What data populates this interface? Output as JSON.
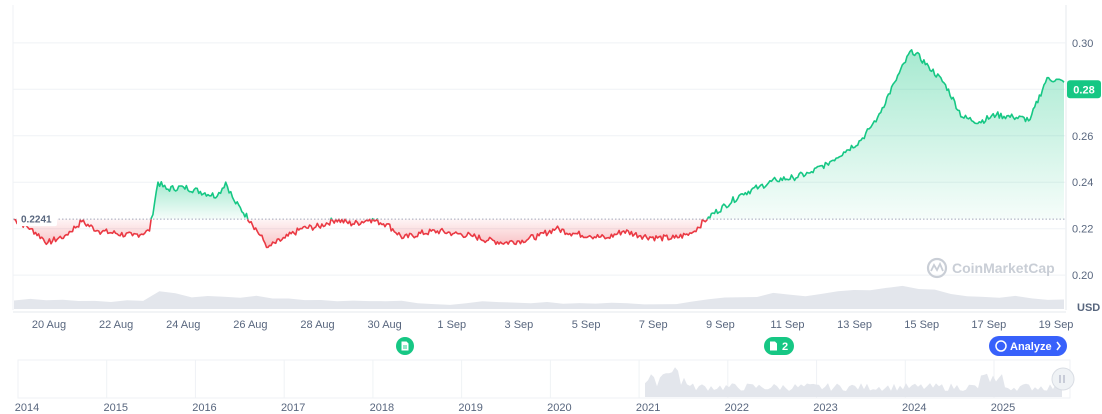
{
  "chart_data": {
    "type": "line",
    "baseline": 0.2241,
    "current_price": 0.28,
    "y_unit": "USD",
    "y_ticks": [
      "0.30",
      "0.28",
      "0.26",
      "0.24",
      "0.22",
      "0.20"
    ],
    "y_tick_values": [
      0.3,
      0.28,
      0.26,
      0.24,
      0.22,
      0.2
    ],
    "ylim": [
      0.185,
      0.315
    ],
    "x_ticks": [
      "20 Aug",
      "22 Aug",
      "24 Aug",
      "26 Aug",
      "28 Aug",
      "30 Aug",
      "1 Sep",
      "3 Sep",
      "5 Sep",
      "7 Sep",
      "9 Sep",
      "11 Sep",
      "13 Sep",
      "15 Sep",
      "17 Sep",
      "19 Sep"
    ],
    "x_start": "2025-08-19",
    "x_end": "2025-09-19",
    "series": [
      {
        "x": [
          "2025-08-19",
          "2025-08-19T12:00",
          "2025-08-20",
          "2025-08-20T12:00",
          "2025-08-21",
          "2025-08-21T12:00",
          "2025-08-22",
          "2025-08-22T12:00",
          "2025-08-23",
          "2025-08-23T06:00",
          "2025-08-23T12:00",
          "2025-08-24",
          "2025-08-24T12:00",
          "2025-08-25",
          "2025-08-25T06:00",
          "2025-08-25T12:00",
          "2025-08-26",
          "2025-08-26T12:00",
          "2025-08-27",
          "2025-08-27T12:00",
          "2025-08-28",
          "2025-08-28T12:00",
          "2025-08-29",
          "2025-08-29T12:00",
          "2025-08-30",
          "2025-08-30T12:00",
          "2025-08-31",
          "2025-08-31T12:00",
          "2025-09-01",
          "2025-09-01T12:00",
          "2025-09-02",
          "2025-09-02T12:00",
          "2025-09-03",
          "2025-09-03T12:00",
          "2025-09-04",
          "2025-09-04T12:00",
          "2025-09-05",
          "2025-09-05T12:00",
          "2025-09-06",
          "2025-09-06T12:00",
          "2025-09-07",
          "2025-09-07T12:00",
          "2025-09-08",
          "2025-09-08T12:00",
          "2025-09-09",
          "2025-09-09T12:00",
          "2025-09-10",
          "2025-09-10T12:00",
          "2025-09-11",
          "2025-09-11T12:00",
          "2025-09-12",
          "2025-09-12T12:00",
          "2025-09-13",
          "2025-09-13T06:00",
          "2025-09-13T12:00",
          "2025-09-14",
          "2025-09-14T12:00",
          "2025-09-15",
          "2025-09-15T12:00",
          "2025-09-16",
          "2025-09-16T12:00",
          "2025-09-17",
          "2025-09-17T12:00",
          "2025-09-18",
          "2025-09-18T12:00",
          "2025-09-19"
        ],
        "y": [
          0.224,
          0.22,
          0.214,
          0.217,
          0.223,
          0.219,
          0.218,
          0.217,
          0.219,
          0.24,
          0.237,
          0.238,
          0.236,
          0.234,
          0.24,
          0.232,
          0.223,
          0.212,
          0.216,
          0.22,
          0.221,
          0.224,
          0.222,
          0.224,
          0.222,
          0.216,
          0.218,
          0.219,
          0.218,
          0.217,
          0.215,
          0.214,
          0.215,
          0.217,
          0.22,
          0.218,
          0.217,
          0.216,
          0.219,
          0.217,
          0.216,
          0.216,
          0.218,
          0.225,
          0.23,
          0.235,
          0.238,
          0.241,
          0.242,
          0.244,
          0.248,
          0.253,
          0.258,
          0.263,
          0.268,
          0.283,
          0.297,
          0.29,
          0.282,
          0.268,
          0.266,
          0.269,
          0.268,
          0.267,
          0.285,
          0.283
        ]
      }
    ],
    "volume": [
      0.4,
      0.38,
      0.36,
      0.35,
      0.34,
      0.33,
      0.32,
      0.33,
      0.36,
      0.7,
      0.65,
      0.55,
      0.5,
      0.45,
      0.48,
      0.5,
      0.45,
      0.42,
      0.4,
      0.38,
      0.36,
      0.35,
      0.34,
      0.33,
      0.3,
      0.22,
      0.18,
      0.2,
      0.22,
      0.28,
      0.32,
      0.3,
      0.28,
      0.27,
      0.26,
      0.25,
      0.24,
      0.23,
      0.22,
      0.22,
      0.21,
      0.22,
      0.3,
      0.4,
      0.48,
      0.52,
      0.58,
      0.62,
      0.6,
      0.58,
      0.62,
      0.7,
      0.78,
      0.85,
      0.95,
      1.0,
      0.9,
      0.78,
      0.7,
      0.62,
      0.55,
      0.5,
      0.48,
      0.45,
      0.42,
      0.4
    ],
    "navigator_years": [
      "2014",
      "2015",
      "2016",
      "2017",
      "2018",
      "2019",
      "2020",
      "2021",
      "2022",
      "2023",
      "2024",
      "2025"
    ]
  },
  "analyze_label": "Analyze",
  "news_badge_count": "2",
  "watermark": "CoinMarketCap",
  "colors": {
    "up": "#16c784",
    "down": "#ea3943",
    "current_bg": "#16c784",
    "analyze_bg": "#3861fb",
    "volume": "#e3e6ec",
    "grid": "#eff2f5"
  }
}
